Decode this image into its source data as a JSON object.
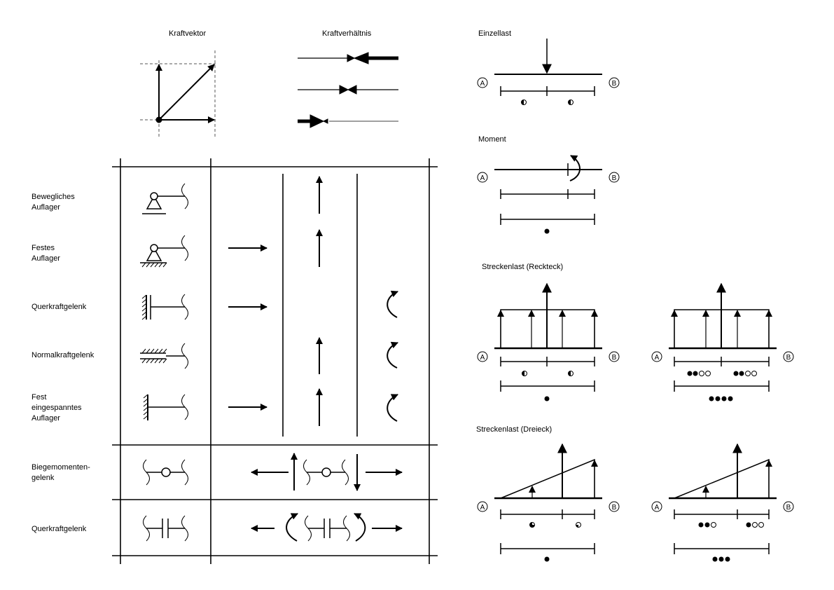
{
  "top": {
    "kraftvektor": "Kraftvektor",
    "kraftverhaeltnis": "Kraftverhältnis"
  },
  "table": {
    "rows": [
      {
        "label": "Bewegliches\nAuflager"
      },
      {
        "label": "Festes\nAuflager"
      },
      {
        "label": "Querkraftgelenk"
      },
      {
        "label": "Normalkraftgelenk"
      },
      {
        "label": "Fest\neingespanntes\nAuflager"
      },
      {
        "label": "Biegemomenten-\ngelenk"
      },
      {
        "label": "Querkraftgelenk"
      }
    ]
  },
  "right": {
    "einzellast": "Einzellast",
    "moment": "Moment",
    "streckenlast_rechteck": "Streckenlast (Reckteck)",
    "streckenlast_dreieck": "Streckenlast (Dreieck)",
    "node_a": "A",
    "node_b": "B"
  },
  "colors": {
    "ink": "#000000",
    "guide": "#555555",
    "background": "#ffffff"
  }
}
